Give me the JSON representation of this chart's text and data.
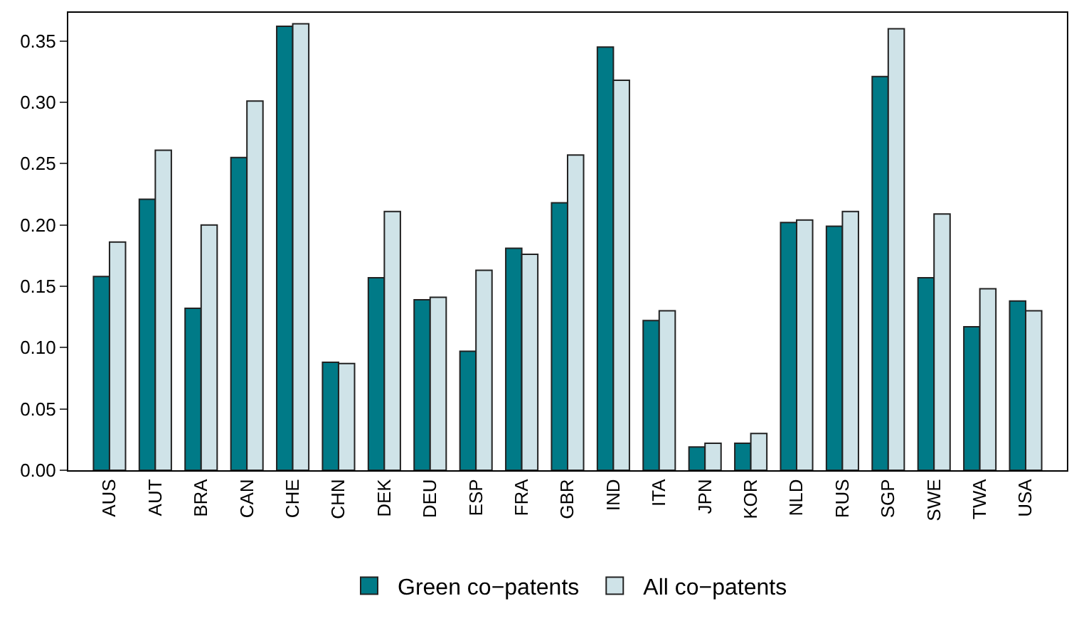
{
  "chart_data": {
    "type": "bar",
    "categories": [
      "AUS",
      "AUT",
      "BRA",
      "CAN",
      "CHE",
      "CHN",
      "DEK",
      "DEU",
      "ESP",
      "FRA",
      "GBR",
      "IND",
      "ITA",
      "JPN",
      "KOR",
      "NLD",
      "RUS",
      "SGP",
      "SWE",
      "TWA",
      "USA"
    ],
    "series": [
      {
        "name": "Green co−patents",
        "color": "#007a87",
        "values": [
          0.158,
          0.221,
          0.132,
          0.255,
          0.362,
          0.088,
          0.157,
          0.139,
          0.097,
          0.181,
          0.218,
          0.345,
          0.122,
          0.019,
          0.022,
          0.202,
          0.199,
          0.321,
          0.157,
          0.117,
          0.138
        ]
      },
      {
        "name": "All co−patents",
        "color": "#cfe3e8",
        "values": [
          0.186,
          0.261,
          0.2,
          0.301,
          0.364,
          0.087,
          0.211,
          0.141,
          0.163,
          0.176,
          0.257,
          0.318,
          0.13,
          0.022,
          0.03,
          0.204,
          0.211,
          0.36,
          0.209,
          0.148,
          0.13
        ]
      }
    ],
    "ylim": [
      0,
      0.373
    ],
    "yticks": [
      {
        "value": 0,
        "label": "0.00"
      },
      {
        "value": 0.05,
        "label": "0.05"
      },
      {
        "value": 0.1,
        "label": "0.10"
      },
      {
        "value": 0.15,
        "label": "0.15"
      },
      {
        "value": 0.2,
        "label": "0.20"
      },
      {
        "value": 0.25,
        "label": "0.25"
      },
      {
        "value": 0.3,
        "label": "0.30"
      },
      {
        "value": 0.35,
        "label": "0.35"
      }
    ],
    "legend": "bottom"
  }
}
